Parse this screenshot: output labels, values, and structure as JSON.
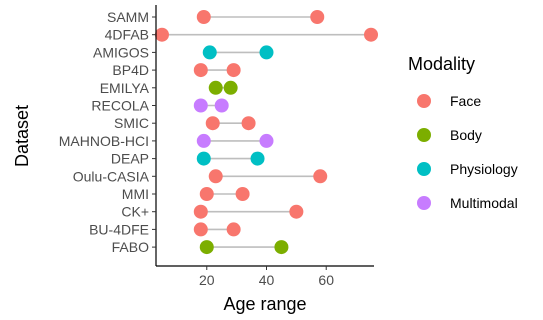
{
  "chart_data": {
    "type": "dumbbell",
    "xlabel": "Age range",
    "ylabel": "Dataset",
    "xlim": [
      3,
      76
    ],
    "xticks": [
      20,
      40,
      60
    ],
    "grid": false,
    "legend": {
      "title": "Modality",
      "placement": "right",
      "entries": [
        {
          "name": "Face",
          "color": "#F8766D"
        },
        {
          "name": "Body",
          "color": "#7CAE00"
        },
        {
          "name": "Physiology",
          "color": "#00BFC4"
        },
        {
          "name": "Multimodal",
          "color": "#C77CFF"
        }
      ]
    },
    "segment_color": "#bebebe",
    "datasets": [
      {
        "name": "SAMM",
        "modality": "Face",
        "min": 19,
        "max": 57
      },
      {
        "name": "4DFAB",
        "modality": "Face",
        "min": 5,
        "max": 75
      },
      {
        "name": "AMIGOS",
        "modality": "Physiology",
        "min": 21,
        "max": 40
      },
      {
        "name": "BP4D",
        "modality": "Face",
        "min": 18,
        "max": 29
      },
      {
        "name": "EMILYA",
        "modality": "Body",
        "min": 23,
        "max": 28
      },
      {
        "name": "RECOLA",
        "modality": "Multimodal",
        "min": 18,
        "max": 25
      },
      {
        "name": "SMIC",
        "modality": "Face",
        "min": 22,
        "max": 34
      },
      {
        "name": "MAHNOB-HCI",
        "modality": "Multimodal",
        "min": 19,
        "max": 40
      },
      {
        "name": "DEAP",
        "modality": "Physiology",
        "min": 19,
        "max": 37
      },
      {
        "name": "Oulu-CASIA",
        "modality": "Face",
        "min": 23,
        "max": 58
      },
      {
        "name": "MMI",
        "modality": "Face",
        "min": 20,
        "max": 32
      },
      {
        "name": "CK+",
        "modality": "Face",
        "min": 18,
        "max": 50
      },
      {
        "name": "BU-4DFE",
        "modality": "Face",
        "min": 18,
        "max": 29
      },
      {
        "name": "FABO",
        "modality": "Body",
        "min": 20,
        "max": 45
      }
    ]
  }
}
